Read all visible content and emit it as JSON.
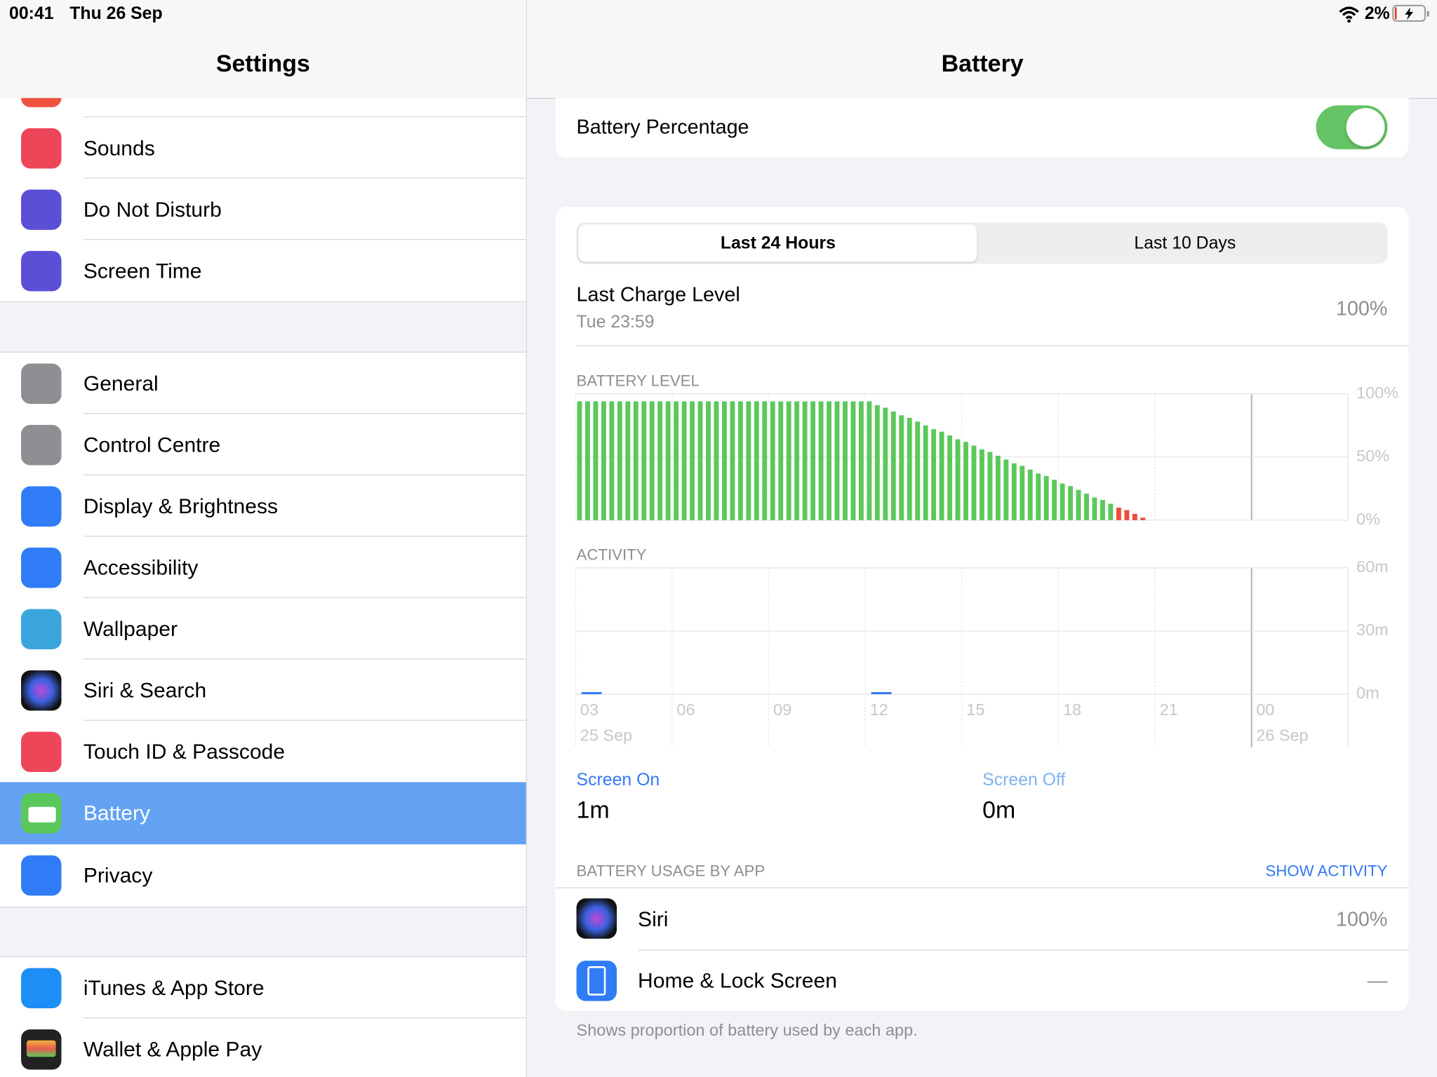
{
  "status_bar": {
    "time": "00:41",
    "date": "Thu 26 Sep",
    "battery": "2%"
  },
  "sidebar": {
    "title": "Settings",
    "items": [
      {
        "label": "Sounds"
      },
      {
        "label": "Do Not Disturb"
      },
      {
        "label": "Screen Time"
      },
      {
        "label": "General"
      },
      {
        "label": "Control Centre"
      },
      {
        "label": "Display & Brightness"
      },
      {
        "label": "Accessibility"
      },
      {
        "label": "Wallpaper"
      },
      {
        "label": "Siri & Search"
      },
      {
        "label": "Touch ID & Passcode"
      },
      {
        "label": "Battery"
      },
      {
        "label": "Privacy"
      },
      {
        "label": "iTunes & App Store"
      },
      {
        "label": "Wallet & Apple Pay"
      }
    ]
  },
  "detail": {
    "title": "Battery",
    "battery_percentage": "Battery Percentage",
    "tabs": [
      "Last 24 Hours",
      "Last 10 Days"
    ],
    "last_charge": {
      "label": "Last Charge Level",
      "time": "Tue 23:59",
      "value": "100%"
    },
    "screen_on": {
      "label": "Screen On",
      "value": "1m"
    },
    "screen_off": {
      "label": "Screen Off",
      "value": "0m"
    },
    "usage_header": "BATTERY USAGE BY APP",
    "show_activity": "SHOW ACTIVITY",
    "apps": [
      {
        "name": "Siri",
        "value": "100%"
      },
      {
        "name": "Home & Lock Screen",
        "value": "—"
      }
    ],
    "footer": "Shows proportion of battery used by each app."
  },
  "chart_data": [
    {
      "type": "bar",
      "title": "BATTERY LEVEL",
      "x": [
        0,
        0.25,
        0.5,
        0.75,
        1,
        1.25,
        1.5,
        1.75,
        2,
        2.25,
        2.5,
        2.75,
        3,
        3.25,
        3.5,
        3.75,
        4,
        4.25,
        4.5,
        4.75,
        5,
        5.25,
        5.5,
        5.75,
        6,
        6.25,
        6.5,
        6.75,
        7,
        7.25,
        7.5,
        7.75,
        8,
        8.25,
        8.5,
        8.75,
        9,
        9.25,
        9.5,
        9.75,
        10,
        10.25,
        10.5,
        10.75,
        11,
        11.25,
        11.5,
        11.75,
        12,
        12.25,
        12.5,
        12.75,
        13,
        13.25,
        13.5,
        13.75,
        14,
        14.25,
        14.5,
        14.75,
        15,
        15.25,
        15.5,
        15.75,
        16,
        16.25,
        16.5,
        16.75,
        17,
        17.25,
        17.5
      ],
      "values": [
        94,
        94,
        94,
        94,
        94,
        94,
        94,
        94,
        94,
        94,
        94,
        94,
        94,
        94,
        94,
        94,
        94,
        94,
        94,
        94,
        94,
        94,
        94,
        94,
        94,
        94,
        94,
        94,
        94,
        94,
        94,
        94,
        94,
        94,
        94,
        94,
        94,
        91,
        89,
        86,
        83,
        81,
        78,
        75,
        72,
        70,
        67,
        64,
        62,
        59,
        56,
        54,
        51,
        48,
        45,
        43,
        40,
        37,
        35,
        32,
        29,
        27,
        24,
        21,
        18,
        16,
        13,
        10,
        8,
        5,
        2
      ],
      "colors": [
        "#5bc85b",
        "#5bc85b",
        "#5bc85b",
        "#5bc85b",
        "#5bc85b",
        "#5bc85b",
        "#5bc85b",
        "#5bc85b",
        "#5bc85b",
        "#5bc85b",
        "#5bc85b",
        "#5bc85b",
        "#5bc85b",
        "#5bc85b",
        "#5bc85b",
        "#5bc85b",
        "#5bc85b",
        "#5bc85b",
        "#5bc85b",
        "#5bc85b",
        "#5bc85b",
        "#5bc85b",
        "#5bc85b",
        "#5bc85b",
        "#5bc85b",
        "#5bc85b",
        "#5bc85b",
        "#5bc85b",
        "#5bc85b",
        "#5bc85b",
        "#5bc85b",
        "#5bc85b",
        "#5bc85b",
        "#5bc85b",
        "#5bc85b",
        "#5bc85b",
        "#5bc85b",
        "#5bc85b",
        "#5bc85b",
        "#5bc85b",
        "#5bc85b",
        "#5bc85b",
        "#5bc85b",
        "#5bc85b",
        "#5bc85b",
        "#5bc85b",
        "#5bc85b",
        "#5bc85b",
        "#5bc85b",
        "#5bc85b",
        "#5bc85b",
        "#5bc85b",
        "#5bc85b",
        "#5bc85b",
        "#5bc85b",
        "#5bc85b",
        "#5bc85b",
        "#5bc85b",
        "#5bc85b",
        "#5bc85b",
        "#5bc85b",
        "#5bc85b",
        "#5bc85b",
        "#5bc85b",
        "#5bc85b",
        "#5bc85b",
        "#5bc85b",
        "#eb4d3d",
        "#eb4d3d",
        "#eb4d3d",
        "#eb4d3d"
      ],
      "xlim": [
        0,
        24
      ],
      "xticks": [
        0,
        3,
        6,
        9,
        12,
        15,
        18,
        21
      ],
      "ylim": [
        0,
        100
      ],
      "yticks": [
        {
          "value": 0,
          "label": "0%"
        },
        {
          "value": 50,
          "label": "50%"
        },
        {
          "value": 100,
          "label": "100%"
        }
      ],
      "grid": true
    },
    {
      "type": "bar",
      "title": "ACTIVITY",
      "x": [
        0,
        1,
        2,
        3,
        4,
        5,
        6,
        7,
        8,
        9,
        10,
        11,
        12,
        13,
        14,
        15,
        16,
        17,
        18,
        19,
        20,
        21,
        22,
        23
      ],
      "values": [
        1,
        0,
        0,
        0,
        0,
        0,
        0,
        0,
        0,
        1,
        0,
        0,
        0,
        0,
        0,
        0,
        0,
        0,
        0,
        0,
        0,
        0,
        0,
        0
      ],
      "color": "#3478f6",
      "xlim": [
        0,
        24
      ],
      "xticks": [
        {
          "value": 0,
          "label": "03"
        },
        {
          "value": 3,
          "label": "06"
        },
        {
          "value": 6,
          "label": "09"
        },
        {
          "value": 9,
          "label": "12"
        },
        {
          "value": 12,
          "label": "15"
        },
        {
          "value": 15,
          "label": "18"
        },
        {
          "value": 18,
          "label": "21"
        },
        {
          "value": 21,
          "label": "00"
        }
      ],
      "x_date_labels": [
        {
          "value": 0,
          "label": "25 Sep"
        },
        {
          "value": 21,
          "label": "26 Sep"
        }
      ],
      "ylim": [
        0,
        60
      ],
      "yticks": [
        {
          "value": 0,
          "label": "0m"
        },
        {
          "value": 30,
          "label": "30m"
        },
        {
          "value": 60,
          "label": "60m"
        }
      ],
      "grid": true
    }
  ]
}
